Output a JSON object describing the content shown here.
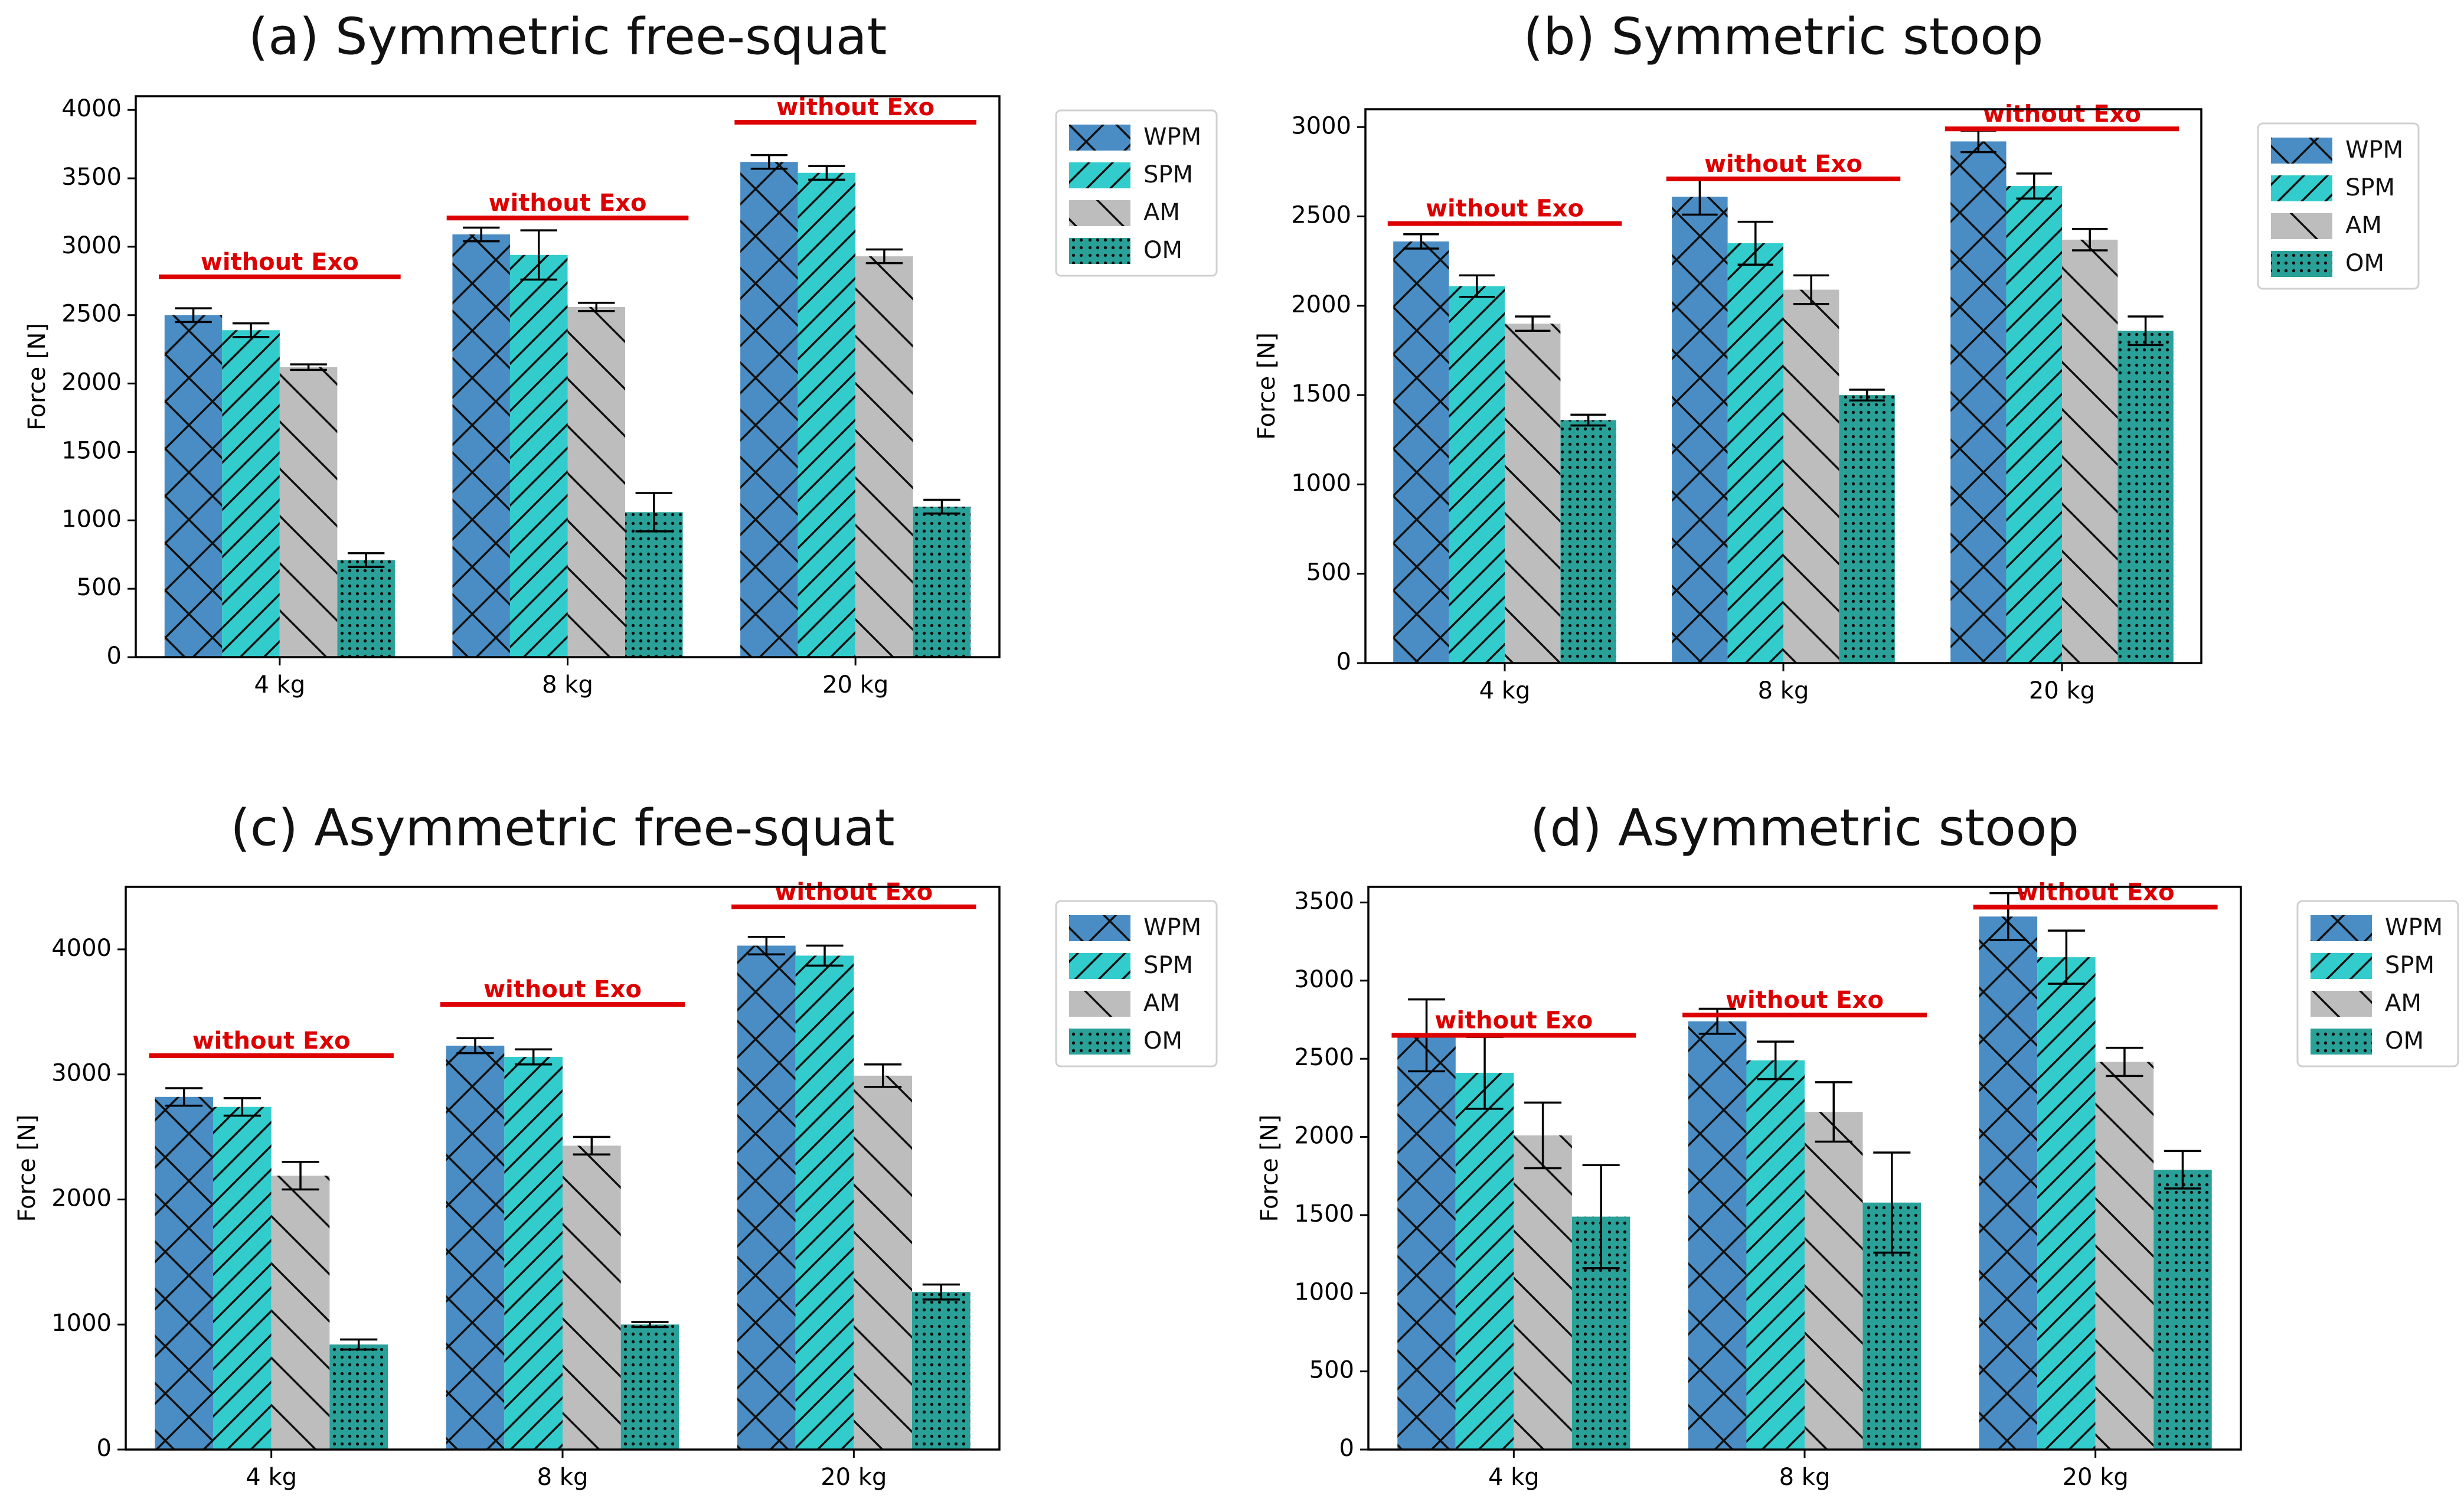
{
  "figure": {
    "legend_labels": [
      "WPM",
      "SPM",
      "AM",
      "OM"
    ],
    "colors": {
      "WPM": "#4a8cc4",
      "SPM": "#33cccc",
      "AM": "#bdbdbd",
      "OM": "#2aa198",
      "without_exo": "#dd0000"
    }
  },
  "chart_data": [
    {
      "id": "a",
      "type": "bar",
      "title": "(a) Symmetric free-squat",
      "xlabel": "",
      "ylabel": "Force [N]",
      "categories": [
        "4 kg",
        "8 kg",
        "20 kg"
      ],
      "ylim": [
        0,
        4100
      ],
      "yticks": [
        0,
        500,
        1000,
        1500,
        2000,
        2500,
        3000,
        3500,
        4000
      ],
      "legend": "outside-right",
      "series": [
        {
          "name": "WPM",
          "values": [
            2500,
            3090,
            3620
          ],
          "errors": [
            50,
            50,
            50
          ]
        },
        {
          "name": "SPM",
          "values": [
            2390,
            2940,
            3540
          ],
          "errors": [
            50,
            180,
            50
          ]
        },
        {
          "name": "AM",
          "values": [
            2120,
            2560,
            2930
          ],
          "errors": [
            20,
            30,
            50
          ]
        },
        {
          "name": "OM",
          "values": [
            710,
            1060,
            1100
          ],
          "errors": [
            50,
            140,
            50
          ]
        }
      ],
      "annotations": [
        {
          "text": "without Exo",
          "value": 2780,
          "category": "4 kg"
        },
        {
          "text": "without Exo",
          "value": 3210,
          "category": "8 kg"
        },
        {
          "text": "without Exo",
          "value": 3910,
          "category": "20 kg"
        }
      ]
    },
    {
      "id": "b",
      "type": "bar",
      "title": "(b) Symmetric stoop",
      "xlabel": "",
      "ylabel": "Force [N]",
      "categories": [
        "4 kg",
        "8 kg",
        "20 kg"
      ],
      "ylim": [
        0,
        3100
      ],
      "yticks": [
        0,
        500,
        1000,
        1500,
        2000,
        2500,
        3000
      ],
      "legend": "outside-right",
      "series": [
        {
          "name": "WPM",
          "values": [
            2360,
            2610,
            2920
          ],
          "errors": [
            40,
            100,
            60
          ]
        },
        {
          "name": "SPM",
          "values": [
            2110,
            2350,
            2670
          ],
          "errors": [
            60,
            120,
            70
          ]
        },
        {
          "name": "AM",
          "values": [
            1900,
            2090,
            2370
          ],
          "errors": [
            40,
            80,
            60
          ]
        },
        {
          "name": "OM",
          "values": [
            1360,
            1500,
            1860
          ],
          "errors": [
            30,
            30,
            80
          ]
        }
      ],
      "annotations": [
        {
          "text": "without Exo",
          "value": 2460,
          "category": "4 kg"
        },
        {
          "text": "without Exo",
          "value": 2710,
          "category": "8 kg"
        },
        {
          "text": "without Exo",
          "value": 2990,
          "category": "20 kg"
        }
      ]
    },
    {
      "id": "c",
      "type": "bar",
      "title": "(c) Asymmetric free-squat",
      "xlabel": "",
      "ylabel": "Force [N]",
      "categories": [
        "4 kg",
        "8 kg",
        "20 kg"
      ],
      "ylim": [
        0,
        4500
      ],
      "yticks": [
        0,
        1000,
        2000,
        3000,
        4000
      ],
      "legend": "outside-right",
      "series": [
        {
          "name": "WPM",
          "values": [
            2820,
            3230,
            4030
          ],
          "errors": [
            70,
            60,
            70
          ]
        },
        {
          "name": "SPM",
          "values": [
            2740,
            3140,
            3950
          ],
          "errors": [
            70,
            60,
            80
          ]
        },
        {
          "name": "AM",
          "values": [
            2190,
            2430,
            2990
          ],
          "errors": [
            110,
            70,
            90
          ]
        },
        {
          "name": "OM",
          "values": [
            840,
            1000,
            1260
          ],
          "errors": [
            40,
            20,
            60
          ]
        }
      ],
      "annotations": [
        {
          "text": "without Exo",
          "value": 3150,
          "category": "4 kg"
        },
        {
          "text": "without Exo",
          "value": 3560,
          "category": "8 kg"
        },
        {
          "text": "without Exo",
          "value": 4340,
          "category": "20 kg"
        }
      ]
    },
    {
      "id": "d",
      "type": "bar",
      "title": "(d) Asymmetric stoop",
      "xlabel": "",
      "ylabel": "Force [N]",
      "categories": [
        "4 kg",
        "8 kg",
        "20 kg"
      ],
      "ylim": [
        0,
        3600
      ],
      "yticks": [
        0,
        500,
        1000,
        1500,
        2000,
        2500,
        3000,
        3500
      ],
      "legend": "outside-right",
      "series": [
        {
          "name": "WPM",
          "values": [
            2650,
            2740,
            3410
          ],
          "errors": [
            230,
            80,
            150
          ]
        },
        {
          "name": "SPM",
          "values": [
            2410,
            2490,
            3150
          ],
          "errors": [
            230,
            120,
            170
          ]
        },
        {
          "name": "AM",
          "values": [
            2010,
            2160,
            2480
          ],
          "errors": [
            210,
            190,
            90
          ]
        },
        {
          "name": "OM",
          "values": [
            1490,
            1580,
            1790
          ],
          "errors": [
            330,
            320,
            120
          ]
        }
      ],
      "annotations": [
        {
          "text": "without Exo",
          "value": 2650,
          "category": "4 kg"
        },
        {
          "text": "without Exo",
          "value": 2780,
          "category": "8 kg"
        },
        {
          "text": "without Exo",
          "value": 3470,
          "category": "20 kg"
        }
      ]
    }
  ]
}
